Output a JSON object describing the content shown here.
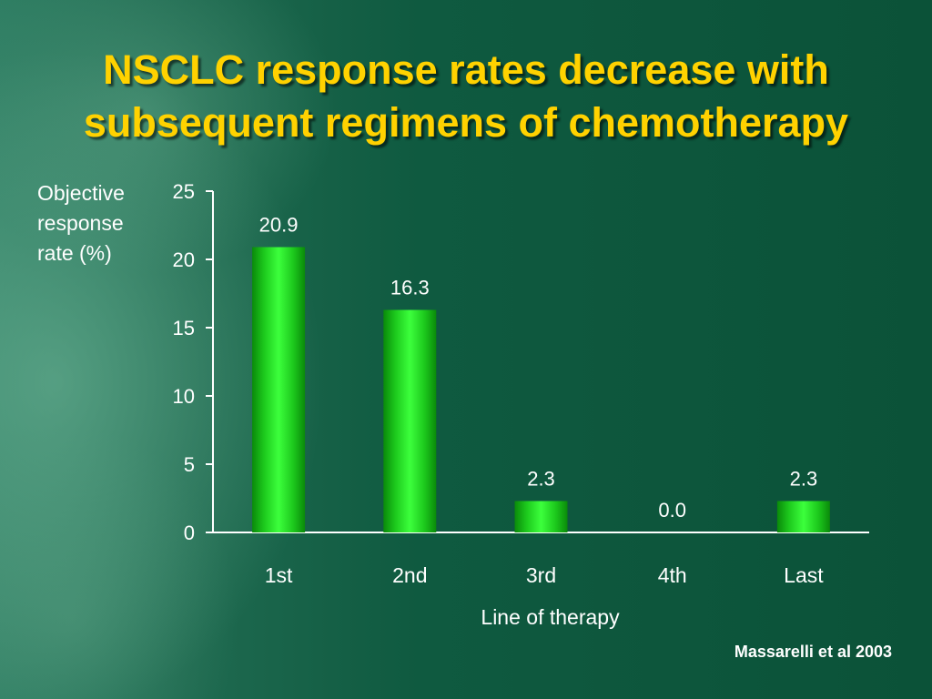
{
  "slide": {
    "title_line1": "NSCLC response rates decrease with",
    "title_line2": "subsequent regimens of chemotherapy",
    "citation": "Massarelli et al 2003"
  },
  "colors": {
    "background": "#0b5238",
    "title": "#ffd200",
    "bar": "#1fdc1f",
    "text": "#ffffff"
  },
  "chart_data": {
    "type": "bar",
    "title": "",
    "categories": [
      "1st",
      "2nd",
      "3rd",
      "4th",
      "Last"
    ],
    "values": [
      20.9,
      16.3,
      2.3,
      0.0,
      2.3
    ],
    "data_labels": [
      "20.9",
      "16.3",
      "2.3",
      "0.0",
      "2.3"
    ],
    "xlabel": "Line of therapy",
    "ylabel_lines": [
      "Objective",
      "response",
      "rate (%)"
    ],
    "ylim": [
      0,
      25
    ],
    "yticks": [
      0,
      5,
      10,
      15,
      20,
      25
    ],
    "grid": false,
    "legend": "none"
  }
}
